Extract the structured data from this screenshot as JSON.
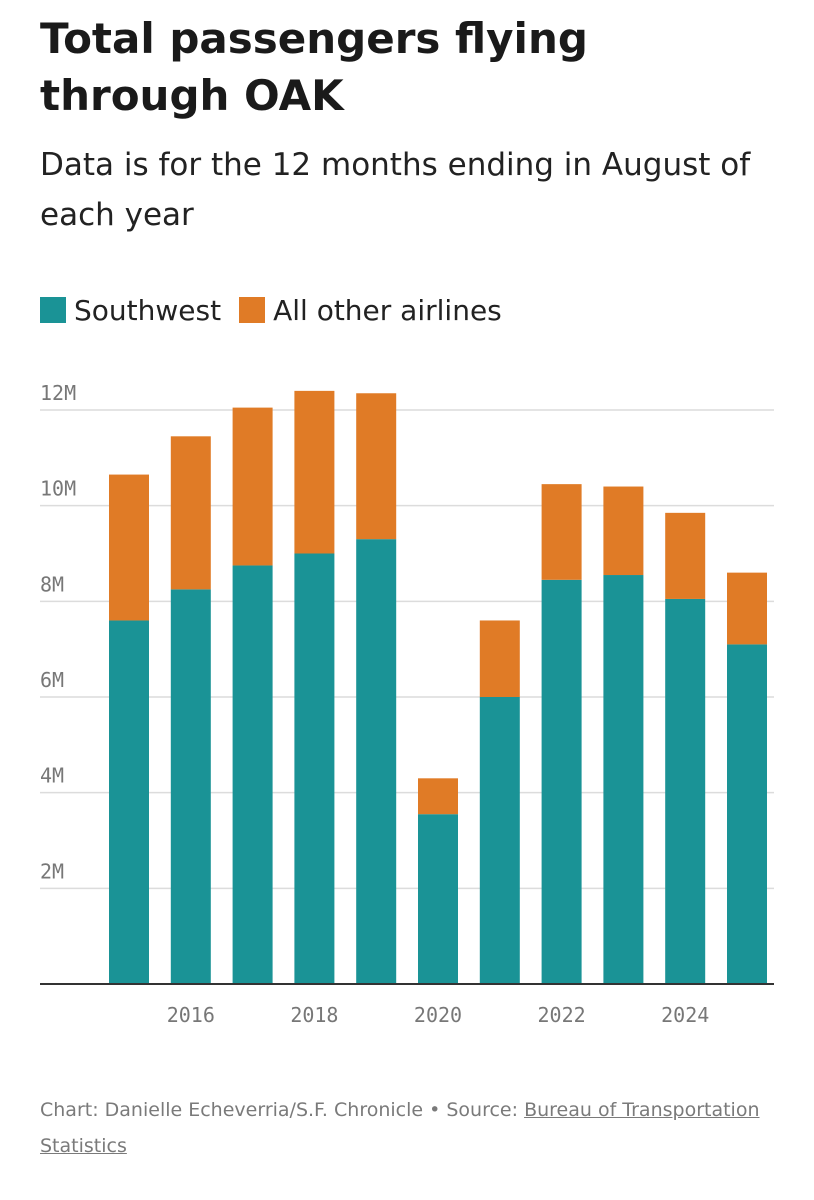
{
  "chart_data": {
    "type": "bar",
    "stacked": true,
    "title": "Total passengers flying through OAK",
    "subtitle": "Data is for the 12 months ending in August of each year",
    "categories": [
      "2015",
      "2016",
      "2017",
      "2018",
      "2019",
      "2020",
      "2021",
      "2022",
      "2023",
      "2024",
      "2025"
    ],
    "x_tick_labels": [
      "2016",
      "2018",
      "2020",
      "2022",
      "2024"
    ],
    "series": [
      {
        "name": "Southwest",
        "color": "#1a9396",
        "values": [
          7.6,
          8.25,
          8.75,
          9.0,
          9.3,
          3.55,
          6.0,
          8.45,
          8.55,
          8.05,
          7.1
        ]
      },
      {
        "name": "All other airlines",
        "color": "#e07b26",
        "values": [
          3.05,
          3.2,
          3.3,
          3.4,
          3.05,
          0.75,
          1.6,
          2.0,
          1.85,
          1.8,
          1.5
        ]
      }
    ],
    "y_unit": "M",
    "ylim": [
      0,
      12
    ],
    "y_ticks": [
      "2M",
      "4M",
      "6M",
      "8M",
      "10M",
      "12M"
    ],
    "grid": true,
    "legend_position": "top-left"
  },
  "legend": {
    "southwest_label": "Southwest",
    "other_label": "All other airlines"
  },
  "footer": {
    "credit": "Chart: Danielle Echeverria/S.F. Chronicle • Source: ",
    "source_link": "Bureau of Transportation Statistics"
  }
}
